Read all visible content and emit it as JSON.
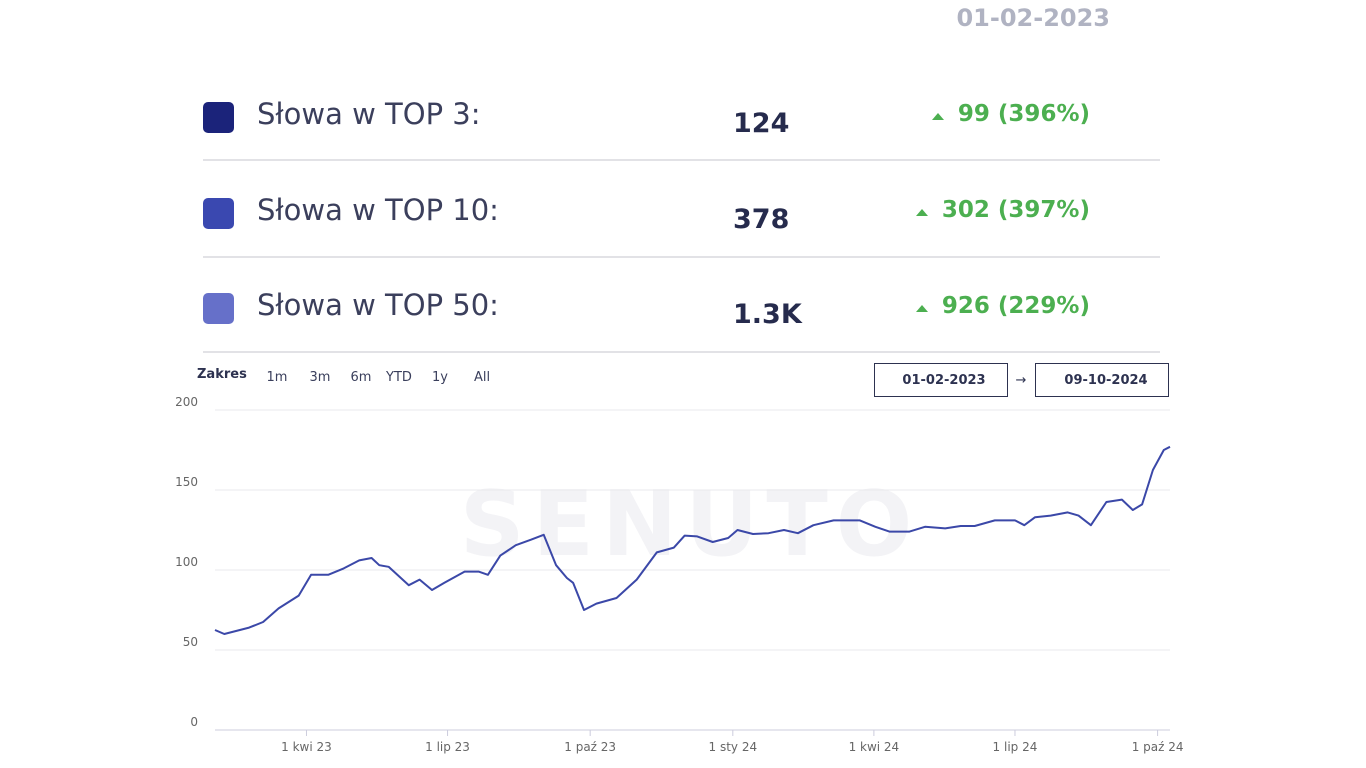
{
  "header": {
    "date": "01-02-2023"
  },
  "stats": [
    {
      "label": "Słowa w TOP 3:",
      "value": "124",
      "change": "99 (396%)",
      "color": "#1b237a"
    },
    {
      "label": "Słowa w TOP 10:",
      "value": "378",
      "change": "302 (397%)",
      "color": "#3a48b0"
    },
    {
      "label": "Słowa w TOP 50:",
      "value": "1.3K",
      "change": "926 (229%)",
      "color": "#6670c9"
    }
  ],
  "range": {
    "label": "Zakres",
    "buttons": [
      "1m",
      "3m",
      "6m",
      "YTD",
      "1y",
      "All"
    ],
    "from": "01-02-2023",
    "separator": "→",
    "to": "09-10-2024"
  },
  "watermark": "SENUTO",
  "chart_data": {
    "type": "line",
    "color": "#3b48a8",
    "grid": true,
    "xlim": [
      "2023-02-01",
      "2024-10-09"
    ],
    "xticks": [
      {
        "value": "2023-04-01",
        "label": "1 kwi 23"
      },
      {
        "value": "2023-07-01",
        "label": "1 lip 23"
      },
      {
        "value": "2023-10-01",
        "label": "1 paź 23"
      },
      {
        "value": "2024-01-01",
        "label": "1 sty 24"
      },
      {
        "value": "2024-04-01",
        "label": "1 kwi 24"
      },
      {
        "value": "2024-07-01",
        "label": "1 lip 24"
      },
      {
        "value": "2024-10-01",
        "label": "1 paź 24"
      }
    ],
    "ylim": [
      0,
      200
    ],
    "yticks": [
      0,
      50,
      100,
      150,
      200
    ],
    "x": [
      "2023-02-01",
      "2023-02-07",
      "2023-02-23",
      "2023-03-04",
      "2023-03-14",
      "2023-03-27",
      "2023-04-04",
      "2023-04-15",
      "2023-04-25",
      "2023-05-05",
      "2023-05-13",
      "2023-05-18",
      "2023-05-24",
      "2023-06-06",
      "2023-06-13",
      "2023-06-21",
      "2023-06-29",
      "2023-07-12",
      "2023-07-21",
      "2023-07-27",
      "2023-08-04",
      "2023-08-14",
      "2023-08-24",
      "2023-09-01",
      "2023-09-09",
      "2023-09-16",
      "2023-09-20",
      "2023-09-27",
      "2023-10-05",
      "2023-10-18",
      "2023-10-31",
      "2023-11-13",
      "2023-11-24",
      "2023-12-01",
      "2023-12-09",
      "2023-12-19",
      "2023-12-29",
      "2024-01-04",
      "2024-01-14",
      "2024-01-24",
      "2024-02-03",
      "2024-02-12",
      "2024-02-22",
      "2024-03-06",
      "2024-03-23",
      "2024-04-02",
      "2024-04-11",
      "2024-04-24",
      "2024-05-04",
      "2024-05-17",
      "2024-05-27",
      "2024-06-05",
      "2024-06-18",
      "2024-07-01",
      "2024-07-07",
      "2024-07-14",
      "2024-07-24",
      "2024-08-04",
      "2024-08-11",
      "2024-08-19",
      "2024-08-29",
      "2024-09-08",
      "2024-09-15",
      "2024-09-21",
      "2024-09-28",
      "2024-10-05",
      "2024-10-09"
    ],
    "values": [
      62.5,
      60,
      64,
      67.5,
      76,
      84,
      97,
      97,
      101,
      106,
      107.5,
      103,
      102,
      90.5,
      94,
      87.5,
      92,
      99,
      99,
      97,
      109,
      115.5,
      119,
      122,
      103,
      95,
      92,
      75,
      79,
      82.5,
      94,
      111,
      114,
      121.5,
      121,
      117.5,
      120,
      125,
      122.5,
      123,
      125,
      123,
      128,
      131,
      131,
      127,
      124,
      124,
      127,
      126,
      127.5,
      127.5,
      131,
      131,
      128,
      133,
      134,
      136,
      134,
      128,
      142.5,
      144,
      137.5,
      141,
      162.5,
      175,
      177
    ]
  }
}
